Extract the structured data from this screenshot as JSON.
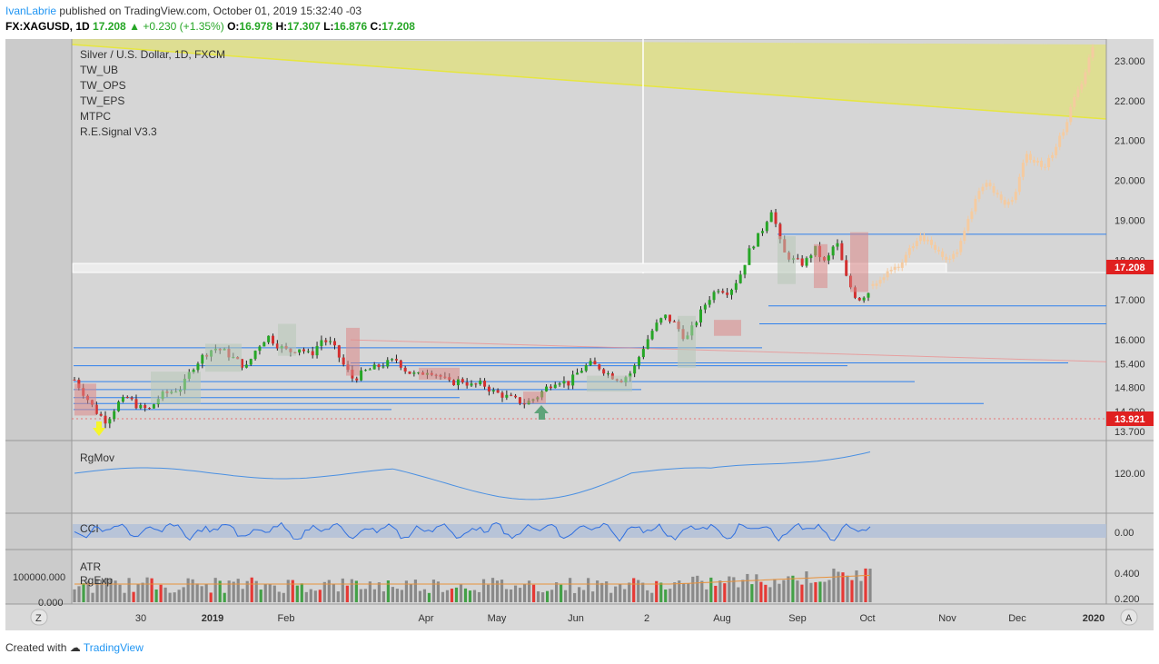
{
  "header": {
    "author": "IvanLabrie",
    "published_text": "published on TradingView.com, October 01, 2019 15:32:40 -03",
    "symbol": "FX:XAGUSD, 1D",
    "last": "17.208",
    "arrow": "▲",
    "change": "+0.230 (+1.35%)",
    "o_label": "O:",
    "o_val": "16.978",
    "h_label": "H:",
    "h_val": "17.307",
    "l_label": "L:",
    "l_val": "16.876",
    "c_label": "C:",
    "c_val": "17.208"
  },
  "legend": {
    "title": "Silver / U.S. Dollar, 1D, FXCM",
    "items": [
      "TW_UB",
      "TW_OPS",
      "TW_EPS",
      "MTPC",
      "R.E.Signal V3.3"
    ]
  },
  "price_axis": {
    "ticks": [
      "23.000",
      "22.000",
      "21.000",
      "20.000",
      "19.000",
      "18.000",
      "17.000",
      "16.000",
      "15.400",
      "14.800",
      "14.200",
      "13.700"
    ],
    "last_price_label": "17.208",
    "low_label": "13.921"
  },
  "indicators": {
    "rgmov": {
      "label": "RgMov",
      "tick": "120.00"
    },
    "cci": {
      "label": "CCI",
      "tick": "0.00"
    },
    "atr": {
      "label1": "ATR",
      "label2": "RgExp",
      "left_ticks": [
        "100000.000",
        "0.000"
      ],
      "right_ticks": [
        "0.400",
        "0.200"
      ]
    }
  },
  "time_axis": {
    "ticks": [
      "30",
      "2019",
      "Feb",
      "Apr",
      "May",
      "Jun",
      "2",
      "Aug",
      "Sep",
      "Oct",
      "Nov",
      "Dec",
      "2020"
    ],
    "left_button": "Z",
    "right_button": "A"
  },
  "colors": {
    "up_candle": "#26a626",
    "down_candle": "#d32f2f",
    "projection": "#f5cba0",
    "yellow_zone": "#dede8e",
    "support_line": "#2f80ed",
    "price_label_bg": "#e02020"
  },
  "footer": {
    "created_with": "Created with",
    "brand": "TradingView"
  },
  "chart_data": {
    "type": "candlestick",
    "title": "Silver / U.S. Dollar, 1D, FXCM",
    "ylim": [
      13.6,
      23.6
    ],
    "last_close": 17.208,
    "open": 16.978,
    "high": 17.307,
    "low": 16.876,
    "y_ticks": [
      23.0,
      22.0,
      21.0,
      20.0,
      19.0,
      18.0,
      17.0,
      16.0,
      15.4,
      14.8,
      14.2,
      13.7
    ],
    "x_ticks": [
      "30",
      "2019",
      "Feb",
      "Apr",
      "May",
      "Jun",
      "2",
      "Aug",
      "Sep",
      "Oct",
      "Nov",
      "Dec",
      "2020"
    ],
    "close_path": [
      15.0,
      14.6,
      14.2,
      13.95,
      14.4,
      14.55,
      14.3,
      14.25,
      14.6,
      14.7,
      14.8,
      15.3,
      15.6,
      15.8,
      15.7,
      15.5,
      15.3,
      15.8,
      16.1,
      15.85,
      15.7,
      15.8,
      15.6,
      16.0,
      15.9,
      15.4,
      15.0,
      15.2,
      15.3,
      15.4,
      15.5,
      15.2,
      15.1,
      15.25,
      15.1,
      14.9,
      15.0,
      14.85,
      14.9,
      14.7,
      14.6,
      14.5,
      14.4,
      14.55,
      14.8,
      15.0,
      14.9,
      15.2,
      15.4,
      15.3,
      15.1,
      15.0,
      15.2,
      15.8,
      16.3,
      16.6,
      16.4,
      16.0,
      16.5,
      17.0,
      17.3,
      17.2,
      17.6,
      18.3,
      18.7,
      19.3,
      18.2,
      18.0,
      17.9,
      18.3,
      17.9,
      18.5,
      17.5,
      17.0,
      17.2
    ],
    "projection_path": [
      17.4,
      17.6,
      17.8,
      17.9,
      18.3,
      18.6,
      18.4,
      18.2,
      18.0,
      18.3,
      19.0,
      19.7,
      19.9,
      19.6,
      19.3,
      19.8,
      20.6,
      20.5,
      20.3,
      20.8,
      21.3,
      22.0,
      22.5,
      23.4
    ],
    "rgmov_tick": 120.0,
    "cci_tick": 0.0,
    "atr_ticks": [
      0.4,
      0.2
    ]
  }
}
